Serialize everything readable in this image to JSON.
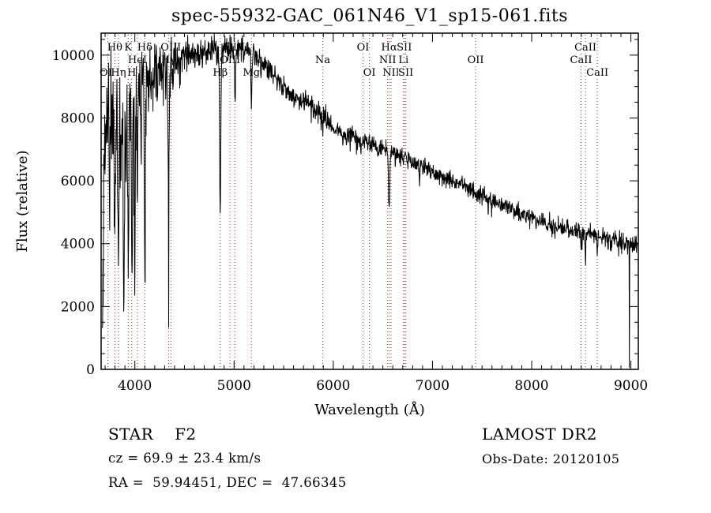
{
  "title": "spec-55932-GAC_061N46_V1_sp15-061.fits",
  "annotations": {
    "class_label": "STAR    F2",
    "cz": "cz = 69.9 ± 23.4 km/s",
    "radec": "RA =  59.94451, DEC =  47.66345",
    "survey": "LAMOST DR2",
    "obs_date": "Obs-Date: 20120105"
  },
  "chart_data": {
    "type": "line",
    "title": "spec-55932-GAC_061N46_V1_sp15-061.fits",
    "xlabel": "Wavelength (Å)",
    "ylabel": "Flux (relative)",
    "xlim": [
      3660,
      9075
    ],
    "ylim": [
      0,
      10700
    ],
    "xticks": [
      4000,
      5000,
      6000,
      7000,
      8000,
      9000
    ],
    "yticks": [
      0,
      2000,
      4000,
      6000,
      8000,
      10000
    ],
    "x_minor_step": 100,
    "y_minor_step": 500,
    "line_color": "#000000",
    "marker_color": "#8e3226",
    "background": "#ffffff",
    "legend": "none",
    "grid": "off",
    "line_markers": [
      {
        "label": "OII",
        "wavelength": 3727,
        "row": 3
      },
      {
        "label": "Hθ",
        "wavelength": 3798,
        "row": 1
      },
      {
        "label": "Hη",
        "wavelength": 3835,
        "row": 3
      },
      {
        "label": "K",
        "wavelength": 3933,
        "row": 1
      },
      {
        "label": "H",
        "wavelength": 3968,
        "row": 3
      },
      {
        "label": "HeI",
        "wavelength": 4026,
        "row": 2
      },
      {
        "label": "Hδ",
        "wavelength": 4101,
        "row": 1
      },
      {
        "label": "Hγ",
        "wavelength": 4340,
        "row": 2
      },
      {
        "label": "OIII",
        "wavelength": 4363,
        "row": 1
      },
      {
        "label": "Hβ",
        "wavelength": 4861,
        "row": 3
      },
      {
        "label": "OIII",
        "wavelength": 4959,
        "row": 2
      },
      {
        "label": "OIII",
        "wavelength": 5007,
        "row": 1
      },
      {
        "label": "Mg",
        "wavelength": 5175,
        "row": 3
      },
      {
        "label": "Na",
        "wavelength": 5893,
        "row": 2
      },
      {
        "label": "OI",
        "wavelength": 6300,
        "row": 1
      },
      {
        "label": "OI",
        "wavelength": 6364,
        "row": 3
      },
      {
        "label": "NII",
        "wavelength": 6548,
        "row": 2
      },
      {
        "label": "Hα",
        "wavelength": 6563,
        "row": 1
      },
      {
        "label": "NII",
        "wavelength": 6583,
        "row": 3
      },
      {
        "label": "Li",
        "wavelength": 6708,
        "row": 2
      },
      {
        "label": "SII",
        "wavelength": 6716,
        "row": 1
      },
      {
        "label": "SII",
        "wavelength": 6731,
        "row": 3
      },
      {
        "label": "OII",
        "wavelength": 7435,
        "row": 2
      },
      {
        "label": "CaII",
        "wavelength": 8498,
        "row": 2
      },
      {
        "label": "CaII",
        "wavelength": 8542,
        "row": 1
      },
      {
        "label": "CaII",
        "wavelength": 8662,
        "row": 3
      }
    ],
    "spectrum": {
      "lambda_start": 3672,
      "lambda_end": 9068,
      "step": 3,
      "seed": 11,
      "continuum": [
        [
          3672,
          900
        ],
        [
          3690,
          6500
        ],
        [
          3710,
          8000
        ],
        [
          3780,
          8400
        ],
        [
          3860,
          8900
        ],
        [
          3950,
          9000
        ],
        [
          4050,
          9200
        ],
        [
          4150,
          9450
        ],
        [
          4300,
          9700
        ],
        [
          4500,
          9950
        ],
        [
          4700,
          10100
        ],
        [
          4900,
          10200
        ],
        [
          5150,
          10150
        ],
        [
          5300,
          9800
        ],
        [
          5400,
          9400
        ],
        [
          5500,
          8950
        ],
        [
          5600,
          8700
        ],
        [
          5750,
          8450
        ],
        [
          5900,
          8100
        ],
        [
          6000,
          7600
        ],
        [
          6200,
          7400
        ],
        [
          6300,
          7300
        ],
        [
          6450,
          7050
        ],
        [
          6563,
          6900
        ],
        [
          6700,
          6750
        ],
        [
          6900,
          6450
        ],
        [
          7100,
          6100
        ],
        [
          7300,
          5900
        ],
        [
          7600,
          5400
        ],
        [
          7900,
          4950
        ],
        [
          8100,
          4700
        ],
        [
          8300,
          4500
        ],
        [
          8500,
          4380
        ],
        [
          8700,
          4220
        ],
        [
          8900,
          4080
        ],
        [
          9000,
          3980
        ],
        [
          9068,
          3950
        ]
      ],
      "noise_sigma": [
        [
          3672,
          1000
        ],
        [
          3800,
          1000
        ],
        [
          3900,
          850
        ],
        [
          4000,
          650
        ],
        [
          4150,
          500
        ],
        [
          4350,
          330
        ],
        [
          4600,
          240
        ],
        [
          5000,
          200
        ],
        [
          5500,
          180
        ],
        [
          6000,
          150
        ],
        [
          6500,
          140
        ],
        [
          7000,
          130
        ],
        [
          7500,
          135
        ],
        [
          8000,
          145
        ],
        [
          8500,
          155
        ],
        [
          9068,
          165
        ]
      ],
      "absorption_lines": [
        [
          3745,
          3000,
          4
        ],
        [
          3798,
          4600,
          6
        ],
        [
          3835,
          5600,
          6
        ],
        [
          3860,
          3200,
          4
        ],
        [
          3889,
          5900,
          6
        ],
        [
          3910,
          3000,
          4
        ],
        [
          3933,
          5500,
          5
        ],
        [
          3970,
          6400,
          5
        ],
        [
          4000,
          6600,
          4
        ],
        [
          4026,
          3500,
          4
        ],
        [
          4063,
          2500,
          3
        ],
        [
          4101,
          6500,
          5
        ],
        [
          4180,
          1400,
          3
        ],
        [
          4226,
          1100,
          3
        ],
        [
          4340,
          3200,
          7
        ],
        [
          4341,
          5600,
          1.4
        ],
        [
          4383,
          900,
          3
        ],
        [
          4455,
          700,
          3
        ],
        [
          4861,
          5100,
          6
        ],
        [
          5010,
          1900,
          4
        ],
        [
          5175,
          1800,
          5
        ],
        [
          5270,
          600,
          3
        ],
        [
          5893,
          700,
          4
        ],
        [
          6280,
          350,
          3
        ],
        [
          6563,
          1900,
          6
        ],
        [
          6870,
          450,
          4
        ],
        [
          7600,
          400,
          4
        ],
        [
          8230,
          300,
          3
        ],
        [
          8498,
          500,
          4
        ],
        [
          8542,
          800,
          4
        ],
        [
          8662,
          700,
          4
        ],
        [
          8985,
          3900,
          1.2
        ]
      ]
    }
  }
}
